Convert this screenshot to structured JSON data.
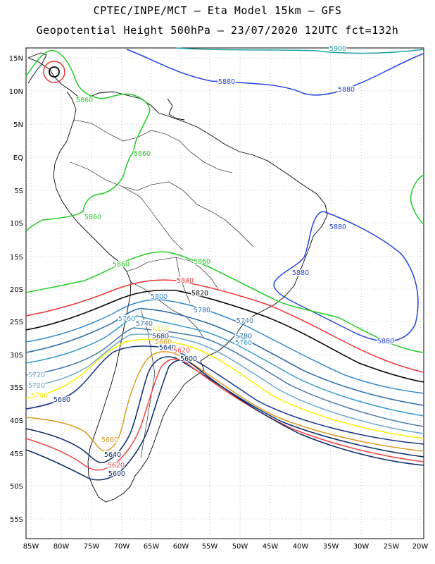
{
  "header": {
    "line1": "CPTEC/INPE/MCT –  Eta Model 15km – GFS",
    "line2": "Geopotential Height 500hPa – 23/07/2020 12UTC fct=132h"
  },
  "axes": {
    "lat_labels": [
      "15N",
      "10N",
      "5N",
      "EQ",
      "5S",
      "10S",
      "15S",
      "20S",
      "25S",
      "30S",
      "35S",
      "40S",
      "45S",
      "50S",
      "55S"
    ],
    "lon_labels": [
      "85W",
      "80W",
      "75W",
      "70W",
      "65W",
      "60W",
      "55W",
      "50W",
      "45W",
      "40W",
      "35W",
      "30W",
      "25W",
      "20W"
    ]
  },
  "contours": {
    "colors": {
      "5900": "#1aa0a8",
      "5880": "#2244dd",
      "5860": "#22cc22",
      "5840": "#ee3333",
      "5820": "#000000",
      "5800": "#3388cc",
      "5780": "#2266aa",
      "5760": "#3399cc",
      "5740": "#4477aa",
      "5720": "#66aacc",
      "5700": "#ffee00",
      "5680": "#113388",
      "5660": "#dd9922",
      "5640": "#0a2a6a",
      "5620": "#ee4444",
      "5600": "#0a2a6a"
    },
    "labels": [
      {
        "value": "5900",
        "color": "#1aa0a8"
      },
      {
        "value": "5880",
        "color": "#2244dd"
      },
      {
        "value": "5880",
        "color": "#2244dd"
      },
      {
        "value": "5880",
        "color": "#2244dd"
      },
      {
        "value": "5880",
        "color": "#2244dd"
      },
      {
        "value": "5880",
        "color": "#2244dd"
      },
      {
        "value": "5860",
        "color": "#22cc22"
      },
      {
        "value": "5860",
        "color": "#22cc22"
      },
      {
        "value": "5860",
        "color": "#22cc22"
      },
      {
        "value": "5860",
        "color": "#22cc22"
      },
      {
        "value": "5860",
        "color": "#22cc22"
      },
      {
        "value": "5840",
        "color": "#ee3333"
      },
      {
        "value": "5820",
        "color": "#000000"
      },
      {
        "value": "5800",
        "color": "#3388cc"
      },
      {
        "value": "5780",
        "color": "#2266aa"
      },
      {
        "value": "5780",
        "color": "#2266aa"
      },
      {
        "value": "5760",
        "color": "#3399cc"
      },
      {
        "value": "5760",
        "color": "#3399cc"
      },
      {
        "value": "5740",
        "color": "#4477aa"
      },
      {
        "value": "5740",
        "color": "#4477aa"
      },
      {
        "value": "5720",
        "color": "#66aacc"
      },
      {
        "value": "5720",
        "color": "#66aacc"
      },
      {
        "value": "5700",
        "color": "#ffee00"
      },
      {
        "value": "5700",
        "color": "#ffee00"
      },
      {
        "value": "5680",
        "color": "#113388"
      },
      {
        "value": "5680",
        "color": "#113388"
      },
      {
        "value": "5660",
        "color": "#dd9922"
      },
      {
        "value": "5660",
        "color": "#dd9922"
      },
      {
        "value": "5640",
        "color": "#0a2a6a"
      },
      {
        "value": "5640",
        "color": "#0a2a6a"
      },
      {
        "value": "5620",
        "color": "#ee4444"
      },
      {
        "value": "5620",
        "color": "#ee4444"
      },
      {
        "value": "5600",
        "color": "#0a2a6a"
      },
      {
        "value": "5600",
        "color": "#0a2a6a"
      }
    ]
  }
}
